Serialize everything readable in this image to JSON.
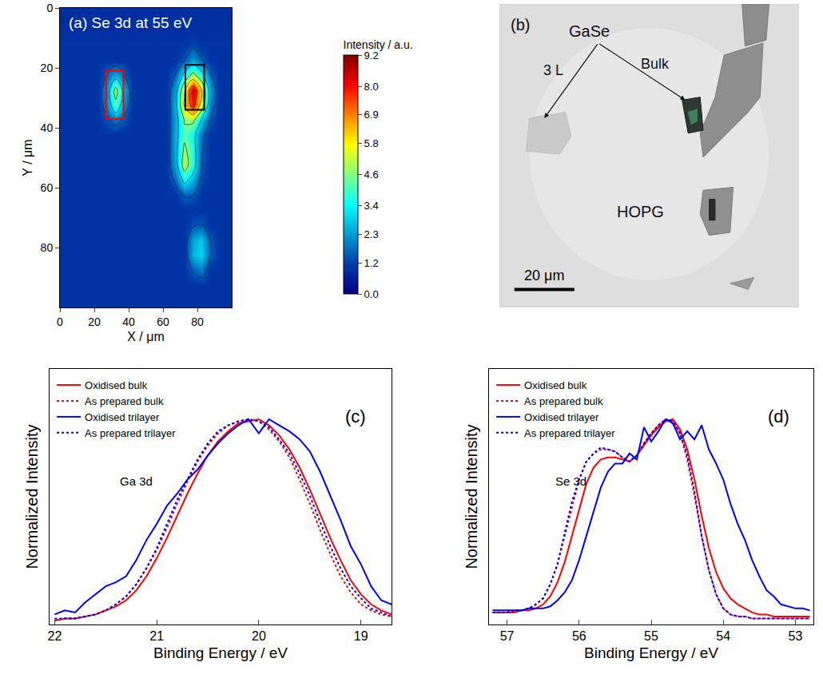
{
  "chart_data": [
    {
      "type": "heatmap",
      "title": "(a) Se 3d at 55 eV",
      "x_label": "X / μm",
      "y_label": "Y / μm",
      "x": [
        2.5,
        7.5,
        12.5,
        17.5,
        22.5,
        27.5,
        32.5,
        37.5,
        42.5,
        47.5,
        52.5,
        57.5,
        62.5,
        67.5,
        72.5,
        77.5,
        82.5,
        87.5,
        92.5,
        97.5
      ],
      "y": [
        2.5,
        7.5,
        12.5,
        17.5,
        22.5,
        27.5,
        32.5,
        37.5,
        42.5,
        47.5,
        52.5,
        57.5,
        62.5,
        67.5,
        72.5,
        77.5,
        82.5,
        87.5,
        92.5,
        97.5
      ],
      "z": [
        [
          0.9,
          0.9,
          0.9,
          0.9,
          0.9,
          0.9,
          0.9,
          0.9,
          0.9,
          0.9,
          0.9,
          0.9,
          0.9,
          0.9,
          0.9,
          0.9,
          0.9,
          0.9,
          0.9,
          0.9
        ],
        [
          0.9,
          0.9,
          0.9,
          0.9,
          0.9,
          0.9,
          0.9,
          0.9,
          0.9,
          0.9,
          0.9,
          0.9,
          0.9,
          0.9,
          0.9,
          0.9,
          0.9,
          0.9,
          0.9,
          0.9
        ],
        [
          1.0,
          1.0,
          1.0,
          1.0,
          1.0,
          1.0,
          1.0,
          1.0,
          1.0,
          1.0,
          1.0,
          1.0,
          1.0,
          1.0,
          1.0,
          1.3,
          1.0,
          1.0,
          1.0,
          1.0
        ],
        [
          1.0,
          1.0,
          1.0,
          1.0,
          1.0,
          1.0,
          1.0,
          1.0,
          1.0,
          1.0,
          1.0,
          1.0,
          1.0,
          1.0,
          1.5,
          2.3,
          1.6,
          1.0,
          1.0,
          1.0
        ],
        [
          1.0,
          1.0,
          1.0,
          1.0,
          1.0,
          1.6,
          2.4,
          1.5,
          1.0,
          1.0,
          1.0,
          1.0,
          1.0,
          1.6,
          3.4,
          5.0,
          3.5,
          1.6,
          1.0,
          1.0
        ],
        [
          1.0,
          1.0,
          1.0,
          1.0,
          1.0,
          2.3,
          5.0,
          2.4,
          1.0,
          1.0,
          1.0,
          1.0,
          1.0,
          2.4,
          5.8,
          8.6,
          6.0,
          2.3,
          1.0,
          1.0
        ],
        [
          1.0,
          1.0,
          1.0,
          1.0,
          1.0,
          2.0,
          4.2,
          2.0,
          1.0,
          1.0,
          1.0,
          1.0,
          1.0,
          2.6,
          6.2,
          8.0,
          5.4,
          2.0,
          1.0,
          1.0
        ],
        [
          1.0,
          1.0,
          1.0,
          1.0,
          1.0,
          1.3,
          1.8,
          1.3,
          1.0,
          1.0,
          1.0,
          1.0,
          1.0,
          2.4,
          4.6,
          4.8,
          2.8,
          1.4,
          1.0,
          1.0
        ],
        [
          1.0,
          1.0,
          1.0,
          1.0,
          1.0,
          1.0,
          1.0,
          1.0,
          1.0,
          1.0,
          1.0,
          1.0,
          1.0,
          2.6,
          4.2,
          3.4,
          1.8,
          1.0,
          1.0,
          1.0
        ],
        [
          1.0,
          1.0,
          1.0,
          1.0,
          1.0,
          1.0,
          1.0,
          1.0,
          1.0,
          1.0,
          1.0,
          1.0,
          1.0,
          2.6,
          4.8,
          3.6,
          1.6,
          1.0,
          1.0,
          1.0
        ],
        [
          1.0,
          1.0,
          1.0,
          1.0,
          1.0,
          1.0,
          1.0,
          1.0,
          1.0,
          1.0,
          1.0,
          1.0,
          1.0,
          2.5,
          5.2,
          3.6,
          1.5,
          1.0,
          1.0,
          1.0
        ],
        [
          1.0,
          1.0,
          1.0,
          1.0,
          1.0,
          1.0,
          1.0,
          1.0,
          1.0,
          1.0,
          1.0,
          1.0,
          1.0,
          1.7,
          3.4,
          2.5,
          1.3,
          1.0,
          1.0,
          1.0
        ],
        [
          1.0,
          1.0,
          1.0,
          1.0,
          1.0,
          1.0,
          1.0,
          1.0,
          1.0,
          1.0,
          1.0,
          1.0,
          1.0,
          1.0,
          1.6,
          1.5,
          1.0,
          1.0,
          1.0,
          1.0
        ],
        [
          1.0,
          1.0,
          1.0,
          1.0,
          1.0,
          1.0,
          1.0,
          1.0,
          1.0,
          1.0,
          1.0,
          1.0,
          1.0,
          1.0,
          1.0,
          1.0,
          1.0,
          1.0,
          1.0,
          1.0
        ],
        [
          1.0,
          1.0,
          1.0,
          1.0,
          1.0,
          1.0,
          1.0,
          1.0,
          1.0,
          1.0,
          1.0,
          1.0,
          1.0,
          1.0,
          1.0,
          1.4,
          1.5,
          1.0,
          1.0,
          1.0
        ],
        [
          1.0,
          1.0,
          1.0,
          1.0,
          1.0,
          1.0,
          1.0,
          1.0,
          1.0,
          1.0,
          1.0,
          1.0,
          1.0,
          1.0,
          1.0,
          2.4,
          2.8,
          1.5,
          1.0,
          1.0
        ],
        [
          1.0,
          1.0,
          1.0,
          1.0,
          1.0,
          1.0,
          1.0,
          1.0,
          1.0,
          1.0,
          1.0,
          1.0,
          1.0,
          1.0,
          1.0,
          2.6,
          3.0,
          1.6,
          1.0,
          1.0
        ],
        [
          1.0,
          1.0,
          1.0,
          1.0,
          1.0,
          1.0,
          1.0,
          1.0,
          1.0,
          1.0,
          1.0,
          1.0,
          1.0,
          1.0,
          1.0,
          1.6,
          2.0,
          1.0,
          1.0,
          1.0
        ],
        [
          1.0,
          1.0,
          1.0,
          1.0,
          1.0,
          1.0,
          1.0,
          1.0,
          1.0,
          1.0,
          1.0,
          1.0,
          1.0,
          1.0,
          1.0,
          1.0,
          1.0,
          1.0,
          1.0,
          1.0
        ],
        [
          1.0,
          1.0,
          1.0,
          1.0,
          1.0,
          1.0,
          1.0,
          1.0,
          1.0,
          1.0,
          1.0,
          1.0,
          1.0,
          1.0,
          1.0,
          1.0,
          1.0,
          1.0,
          1.0,
          1.0
        ]
      ],
      "xlim": [
        0,
        100
      ],
      "ylim": [
        100,
        0
      ],
      "xticks": [
        0,
        20,
        40,
        60,
        80
      ],
      "yticks": [
        0,
        20,
        40,
        60,
        80
      ],
      "colorbar_title": "Intensity / a.u.",
      "zlim": [
        0,
        9.2
      ],
      "zticks": [
        {
          "value": 0,
          "label": "0.0"
        },
        1.2,
        2.3,
        3.4,
        4.6,
        5.8,
        6.9,
        {
          "value": 8,
          "label": "8.0"
        },
        9.2
      ],
      "regions": [
        {
          "x": [
            27,
            37
          ],
          "y": [
            21,
            37
          ],
          "color": "#ff0000"
        },
        {
          "x": [
            73,
            84
          ],
          "y": [
            19,
            34
          ],
          "color": "#000000"
        }
      ]
    },
    {
      "type": "micrograph",
      "labels": [
        "(b)",
        "GaSe",
        "3 L",
        "Bulk",
        "HOPG"
      ],
      "scale_bar": {
        "value": 20,
        "label": "20 μm"
      }
    },
    {
      "type": "line",
      "title": "(c)",
      "annotation": "Ga 3d",
      "x_label": "Binding Energy / eV",
      "y_label": "Normalized Intensity",
      "x": [
        22.0,
        21.9,
        21.8,
        21.7,
        21.6,
        21.5,
        21.4,
        21.3,
        21.2,
        21.1,
        21.0,
        20.9,
        20.8,
        20.7,
        20.6,
        20.5,
        20.4,
        20.3,
        20.2,
        20.1,
        20.0,
        19.9,
        19.8,
        19.7,
        19.6,
        19.5,
        19.4,
        19.3,
        19.2,
        19.1,
        19.0,
        18.9,
        18.8,
        18.7
      ],
      "series": [
        {
          "name": "Oxidised bulk",
          "color": "#ff0000",
          "line_style": "solid",
          "values": [
            0.0,
            0.01,
            0.01,
            0.02,
            0.03,
            0.05,
            0.07,
            0.1,
            0.15,
            0.22,
            0.31,
            0.41,
            0.52,
            0.63,
            0.73,
            0.82,
            0.89,
            0.94,
            0.98,
            0.99,
            1.0,
            0.97,
            0.92,
            0.85,
            0.76,
            0.65,
            0.53,
            0.41,
            0.3,
            0.2,
            0.13,
            0.08,
            0.05,
            0.03
          ]
        },
        {
          "name": "As prepared bulk",
          "color": "#ff0000",
          "line_style": "dotted",
          "values": [
            0.0,
            0.01,
            0.01,
            0.02,
            0.03,
            0.05,
            0.08,
            0.12,
            0.18,
            0.26,
            0.35,
            0.46,
            0.58,
            0.69,
            0.79,
            0.87,
            0.93,
            0.97,
            0.99,
            1.0,
            0.99,
            0.95,
            0.89,
            0.81,
            0.7,
            0.58,
            0.45,
            0.33,
            0.22,
            0.14,
            0.08,
            0.05,
            0.03,
            0.02
          ]
        },
        {
          "name": "Oxidised trilayer",
          "color": "#0000ff",
          "line_style": "solid",
          "values": [
            0.03,
            0.05,
            0.04,
            0.09,
            0.13,
            0.17,
            0.19,
            0.22,
            0.3,
            0.4,
            0.48,
            0.57,
            0.63,
            0.7,
            0.75,
            0.82,
            0.88,
            0.93,
            0.97,
            1.0,
            0.93,
            1.0,
            0.97,
            0.94,
            0.9,
            0.84,
            0.74,
            0.62,
            0.5,
            0.37,
            0.28,
            0.17,
            0.1,
            0.08
          ]
        },
        {
          "name": "As prepared trilayer",
          "color": "#0000ff",
          "line_style": "dotted",
          "values": [
            0.01,
            0.01,
            0.01,
            0.02,
            0.03,
            0.05,
            0.08,
            0.12,
            0.18,
            0.26,
            0.36,
            0.48,
            0.6,
            0.7,
            0.8,
            0.88,
            0.94,
            0.97,
            0.99,
            1.0,
            0.99,
            0.96,
            0.9,
            0.83,
            0.73,
            0.62,
            0.49,
            0.37,
            0.26,
            0.17,
            0.11,
            0.06,
            0.04,
            0.02
          ]
        }
      ],
      "xlim": [
        22.05,
        18.7
      ],
      "xticks": [
        22,
        21,
        20,
        19
      ],
      "ylim": [
        -0.02,
        1.25
      ],
      "tick_labels": "x",
      "legend": "upper left"
    },
    {
      "type": "line",
      "title": "(d)",
      "annotation": "Se 3d",
      "x_label": "Binding Energy / eV",
      "y_label": "Normalized Intensity",
      "x": [
        57.2,
        57.1,
        57.0,
        56.9,
        56.8,
        56.7,
        56.6,
        56.5,
        56.4,
        56.3,
        56.2,
        56.1,
        56.0,
        55.9,
        55.8,
        55.7,
        55.6,
        55.5,
        55.4,
        55.3,
        55.2,
        55.1,
        55.0,
        54.9,
        54.8,
        54.7,
        54.6,
        54.5,
        54.4,
        54.3,
        54.2,
        54.1,
        54.0,
        53.9,
        53.8,
        53.7,
        53.6,
        53.5,
        53.4,
        53.3,
        53.2,
        53.1,
        53.0,
        52.9,
        52.8
      ],
      "series": [
        {
          "name": "Oxidised bulk",
          "color": "#ff0000",
          "line_style": "solid",
          "values": [
            0.04,
            0.04,
            0.04,
            0.04,
            0.05,
            0.05,
            0.06,
            0.08,
            0.12,
            0.19,
            0.29,
            0.42,
            0.56,
            0.68,
            0.76,
            0.8,
            0.81,
            0.81,
            0.8,
            0.79,
            0.82,
            0.87,
            0.92,
            0.96,
            0.99,
            1.0,
            0.95,
            0.85,
            0.7,
            0.52,
            0.36,
            0.24,
            0.16,
            0.11,
            0.08,
            0.06,
            0.04,
            0.03,
            0.03,
            0.02,
            0.02,
            0.02,
            0.02,
            0.02,
            0.02
          ]
        },
        {
          "name": "As prepared bulk",
          "color": "#ff0000",
          "line_style": "dotted",
          "values": [
            0.04,
            0.04,
            0.04,
            0.05,
            0.05,
            0.06,
            0.08,
            0.11,
            0.18,
            0.28,
            0.42,
            0.57,
            0.7,
            0.79,
            0.83,
            0.85,
            0.85,
            0.84,
            0.81,
            0.79,
            0.82,
            0.88,
            0.93,
            0.97,
            1.0,
            0.99,
            0.93,
            0.8,
            0.62,
            0.42,
            0.25,
            0.13,
            0.06,
            0.03,
            0.02,
            0.02,
            0.01,
            0.01,
            0.01,
            0.01,
            0.01,
            0.01,
            0.01,
            0.01,
            0.01
          ]
        },
        {
          "name": "Oxidised trilayer",
          "color": "#0000ff",
          "line_style": "solid",
          "values": [
            0.05,
            0.05,
            0.05,
            0.05,
            0.05,
            0.06,
            0.06,
            0.06,
            0.07,
            0.1,
            0.14,
            0.2,
            0.3,
            0.42,
            0.55,
            0.66,
            0.74,
            0.78,
            0.78,
            0.83,
            0.8,
            0.96,
            0.89,
            0.94,
            1.0,
            0.98,
            0.9,
            0.94,
            0.9,
            0.97,
            0.85,
            0.78,
            0.7,
            0.58,
            0.48,
            0.4,
            0.3,
            0.22,
            0.15,
            0.12,
            0.08,
            0.07,
            0.06,
            0.06,
            0.05
          ]
        },
        {
          "name": "As prepared trilayer",
          "color": "#0000ff",
          "line_style": "dotted",
          "values": [
            0.04,
            0.04,
            0.04,
            0.05,
            0.05,
            0.06,
            0.08,
            0.11,
            0.18,
            0.28,
            0.44,
            0.59,
            0.7,
            0.79,
            0.83,
            0.86,
            0.85,
            0.84,
            0.81,
            0.79,
            0.82,
            0.88,
            0.93,
            0.97,
            1.0,
            0.99,
            0.93,
            0.82,
            0.64,
            0.42,
            0.25,
            0.13,
            0.06,
            0.03,
            0.02,
            0.02,
            0.01,
            0.01,
            0.01,
            0.01,
            0.01,
            0.01,
            0.01,
            0.01,
            0.01
          ]
        }
      ],
      "xlim": [
        57.25,
        52.75
      ],
      "xticks": [
        57,
        56,
        55,
        54,
        53
      ],
      "ylim": [
        -0.02,
        1.25
      ],
      "tick_labels": "x",
      "legend": "upper left"
    }
  ]
}
